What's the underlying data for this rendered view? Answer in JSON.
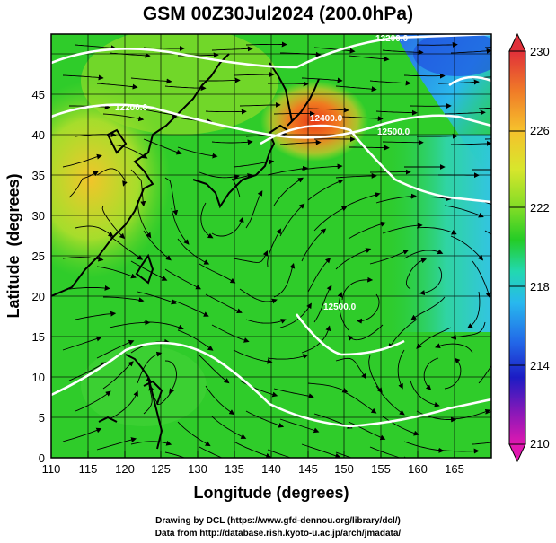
{
  "title": "GSM 00Z30Jul2024 (200.0hPa)",
  "credits": {
    "line1": "Drawing by DCL (https://www.gfd-dennou.org/library/dcl/)",
    "line2": "Data from http://database.rish.kyoto-u.ac.jp/arch/jmadata/"
  },
  "axes": {
    "xlabel": "Longitude (degrees)",
    "ylabel": "Latitude  (degrees)",
    "xticks": [
      "110",
      "115",
      "120",
      "125",
      "130",
      "135",
      "140",
      "145",
      "150",
      "155",
      "160",
      "165"
    ],
    "yticks": [
      "0",
      "5",
      "10",
      "15",
      "20",
      "25",
      "30",
      "35",
      "40",
      "45"
    ]
  },
  "colorbar": {
    "labels": [
      "230",
      "226",
      "222",
      "218",
      "214",
      "210"
    ],
    "colors": [
      "#e0303a",
      "#f07a28",
      "#f6c02c",
      "#d8e62c",
      "#7fdc26",
      "#24cc26",
      "#22d8b0",
      "#28b8ee",
      "#2268e8",
      "#1c1cc4",
      "#8a18b8",
      "#e018b0"
    ]
  },
  "contour_labels": [
    "12200.0",
    "12200.0",
    "12400.0",
    "12500.0",
    "12500.0"
  ]
}
